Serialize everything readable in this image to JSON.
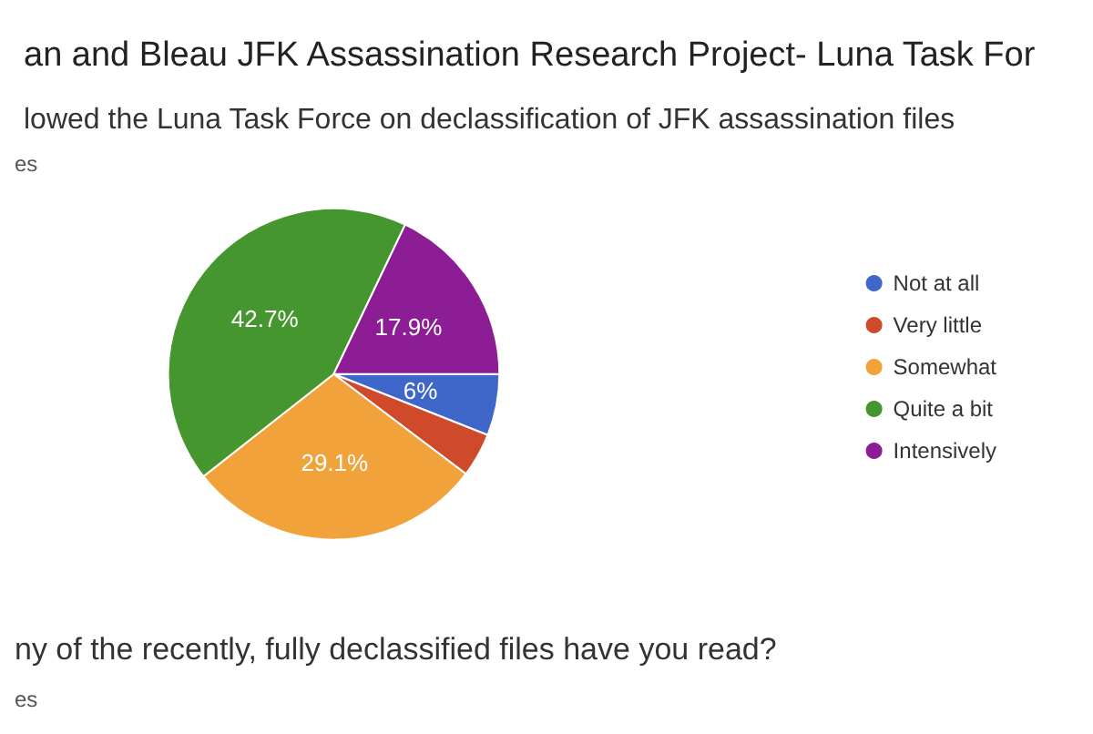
{
  "chart_data": {
    "type": "pie",
    "title": "an and Bleau JFK Assassination Research Project- Luna Task For",
    "subtitle": "lowed the Luna Task Force on declassification of JFK assassination files",
    "annotations": [
      "es",
      "ny of the recently, fully declassified files have you read?",
      "es"
    ],
    "categories": [
      "Not at all",
      "Very little",
      "Somewhat",
      "Quite a bit",
      "Intensively"
    ],
    "values": [
      6,
      4.3,
      29.1,
      42.7,
      17.9
    ],
    "value_labels": [
      "6%",
      null,
      "29.1%",
      "42.7%",
      "17.9%"
    ],
    "colors": [
      "#3f67c9",
      "#cf4a2b",
      "#f2a23b",
      "#46962f",
      "#8c1d95"
    ],
    "legend": "right"
  }
}
